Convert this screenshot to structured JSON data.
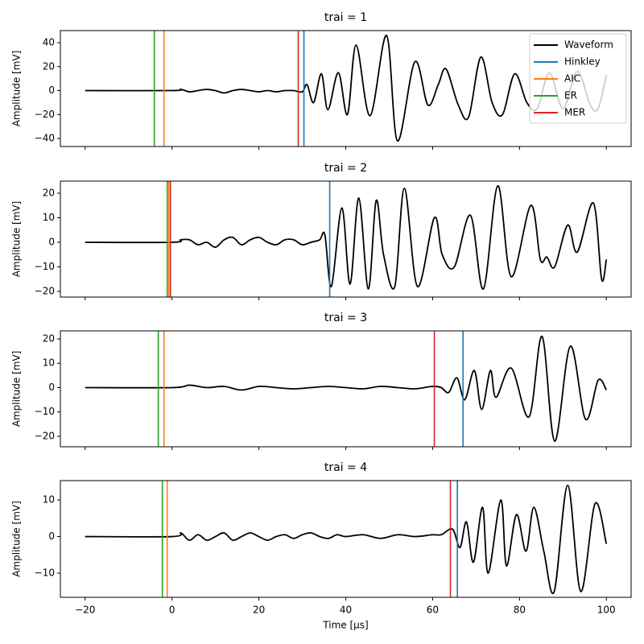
{
  "chart_data": [
    {
      "type": "line",
      "title": "trai = 1",
      "ylabel": "Amplitude [mV]",
      "xlim": [
        -25.7,
        105.7
      ],
      "ylim": [
        -46.7,
        50.1
      ],
      "xticks": [
        {
          "value": -20,
          "label": "−20"
        },
        0,
        20,
        40,
        60,
        80,
        100
      ],
      "yticks": [
        {
          "value": -40,
          "label": "−40"
        },
        {
          "value": -20,
          "label": "−20"
        },
        0,
        20,
        40
      ],
      "x": [
        -20,
        0,
        2,
        4,
        6,
        8,
        10,
        12,
        14,
        16,
        18,
        20,
        22,
        24,
        26,
        28,
        30,
        31.1,
        32.6,
        34.4,
        35.9,
        38.3,
        40.4,
        42.4,
        45.6,
        49.4,
        51.9,
        55.9,
        58.9,
        61.3,
        63.1,
        65.9,
        68.3,
        71.1,
        73.7,
        76.1,
        78.9,
        81.7,
        84.1,
        86.9,
        90.0,
        93.3,
        96.3,
        98.1,
        100
      ],
      "series": [
        {
          "name": "Waveform",
          "color": "#000000",
          "values": [
            0,
            0,
            1,
            -1,
            0,
            1,
            0,
            -2,
            0,
            1,
            0,
            -1,
            0,
            -1,
            0,
            0,
            -1,
            5,
            -10,
            14,
            -16,
            15,
            -20,
            38,
            -21,
            46,
            -42,
            24,
            -12,
            5,
            18,
            -12,
            -22,
            28,
            -10,
            -20,
            14,
            -10,
            -15,
            15,
            -15,
            16,
            -12,
            -15,
            13
          ]
        }
      ],
      "vlines": [
        {
          "name": "Hinkley",
          "color": "#1f77b4",
          "x": 30.37
        },
        {
          "name": "AIC",
          "color": "#ff7f0e",
          "x": -1.85
        },
        {
          "name": "ER",
          "color": "#2ca02c",
          "x": -4.07
        },
        {
          "name": "MER",
          "color": "#d62728",
          "x": 29.07
        }
      ],
      "legend": "upper right"
    },
    {
      "type": "line",
      "title": "trai = 2",
      "ylabel": "Amplitude [mV]",
      "xlim": [
        -25.7,
        105.7
      ],
      "ylim": [
        -22.3,
        24.9
      ],
      "xticks": [
        {
          "value": -20,
          "label": "−20"
        },
        0,
        20,
        40,
        60,
        80,
        100
      ],
      "yticks": [
        {
          "value": -20,
          "label": "−20"
        },
        {
          "value": -10,
          "label": "−10"
        },
        0,
        10,
        20
      ],
      "x": [
        -20,
        0,
        2,
        4,
        6,
        8,
        10,
        12,
        14,
        16,
        18,
        20,
        22,
        24,
        26,
        28,
        30,
        32,
        34,
        35.2,
        36.7,
        39.1,
        41.0,
        43.0,
        45.2,
        47.0,
        48.7,
        51.3,
        53.5,
        56.5,
        60.4,
        62.2,
        65.0,
        68.7,
        71.7,
        75.0,
        78.1,
        82.6,
        84.8,
        86.3,
        88.1,
        91.1,
        93.3,
        97.0,
        98.9,
        100
      ],
      "series": [
        {
          "color": "#000000",
          "values": [
            0,
            0,
            1,
            1,
            -1,
            0,
            -2,
            1,
            2,
            -1,
            1,
            2,
            0,
            -1,
            1,
            1,
            -1,
            0,
            1,
            3,
            -18,
            14,
            -17,
            18,
            -19,
            17,
            -5,
            -18,
            22,
            -18,
            10,
            -5,
            -10,
            11,
            -19,
            23,
            -14,
            15,
            -7,
            -6,
            -10,
            7,
            -4,
            16,
            -15,
            -7
          ]
        }
      ],
      "vlines": [
        {
          "color": "#1f77b4",
          "x": 36.3
        },
        {
          "color": "#ff7f0e",
          "x": -0.74
        },
        {
          "color": "#2ca02c",
          "x": -1.11
        },
        {
          "color": "#d62728",
          "x": -0.37
        }
      ]
    },
    {
      "type": "line",
      "title": "trai = 3",
      "ylabel": "Amplitude [mV]",
      "xlim": [
        -25.7,
        105.7
      ],
      "ylim": [
        -24.3,
        23.3
      ],
      "xticks": [
        {
          "value": -20,
          "label": "−20"
        },
        0,
        20,
        40,
        60,
        80,
        100
      ],
      "yticks": [
        {
          "value": -20,
          "label": "−20"
        },
        {
          "value": -10,
          "label": "−10"
        },
        0,
        10,
        20
      ],
      "x": [
        -20,
        0,
        4,
        8,
        12,
        16,
        20,
        24,
        28,
        32,
        36,
        40,
        44,
        48,
        52,
        56,
        60,
        62,
        63.7,
        65.6,
        67.4,
        69.6,
        71.3,
        73.3,
        74.6,
        78.1,
        82.2,
        85.2,
        88.1,
        91.7,
        95.2,
        98.1,
        100
      ],
      "series": [
        {
          "color": "#000000",
          "values": [
            0,
            0,
            1,
            0,
            0.5,
            -1,
            0.5,
            0,
            -0.5,
            0,
            0.5,
            0,
            -0.5,
            0.5,
            0,
            -0.5,
            0.5,
            0,
            -2,
            4,
            -5,
            7,
            -9,
            7,
            -4,
            8,
            -12,
            21,
            -22,
            17,
            -13,
            3,
            -1
          ]
        }
      ],
      "vlines": [
        {
          "color": "#1f77b4",
          "x": 67.0
        },
        {
          "color": "#ff7f0e",
          "x": -1.85
        },
        {
          "color": "#2ca02c",
          "x": -3.15
        },
        {
          "color": "#d62728",
          "x": 60.4
        }
      ]
    },
    {
      "type": "line",
      "title": "trai = 4",
      "ylabel": "Amplitude [mV]",
      "xlabel": "Time [µs]",
      "xlim": [
        -25.7,
        105.7
      ],
      "ylim": [
        -16.6,
        15.3
      ],
      "xticks": [
        {
          "value": -20,
          "label": "−20"
        },
        0,
        20,
        40,
        60,
        80,
        100
      ],
      "yticks": [
        {
          "value": -10,
          "label": "−10"
        },
        0,
        10
      ],
      "x": [
        -20,
        0,
        2,
        4,
        6,
        8,
        10,
        12,
        14,
        16,
        18,
        20,
        22,
        24,
        26,
        28,
        30,
        32,
        34,
        36,
        38,
        40,
        44,
        48,
        52,
        56,
        60,
        62,
        64.6,
        66.3,
        67.8,
        69.4,
        71.5,
        72.8,
        75.7,
        77.0,
        79.3,
        81.5,
        83.3,
        85.6,
        88.0,
        91.1,
        94.1,
        97.4,
        100
      ],
      "series": [
        {
          "color": "#000000",
          "values": [
            0,
            0,
            1,
            -1,
            0.5,
            -1,
            0,
            1,
            -1,
            0,
            1,
            0,
            -1,
            0,
            0.5,
            -0.5,
            0.5,
            1,
            0,
            -0.5,
            0.5,
            0,
            0.5,
            -0.5,
            0.5,
            0,
            0.5,
            0.5,
            2,
            -3,
            4,
            -7,
            8,
            -10,
            10,
            -8,
            6,
            -4,
            8,
            -4,
            -15,
            14,
            -15,
            9,
            -2
          ]
        }
      ],
      "vlines": [
        {
          "color": "#1f77b4",
          "x": 65.7
        },
        {
          "color": "#ff7f0e",
          "x": -1.11
        },
        {
          "color": "#2ca02c",
          "x": -2.22
        },
        {
          "color": "#d62728",
          "x": 64.1
        }
      ],
      "show_xticklabels": true
    }
  ]
}
